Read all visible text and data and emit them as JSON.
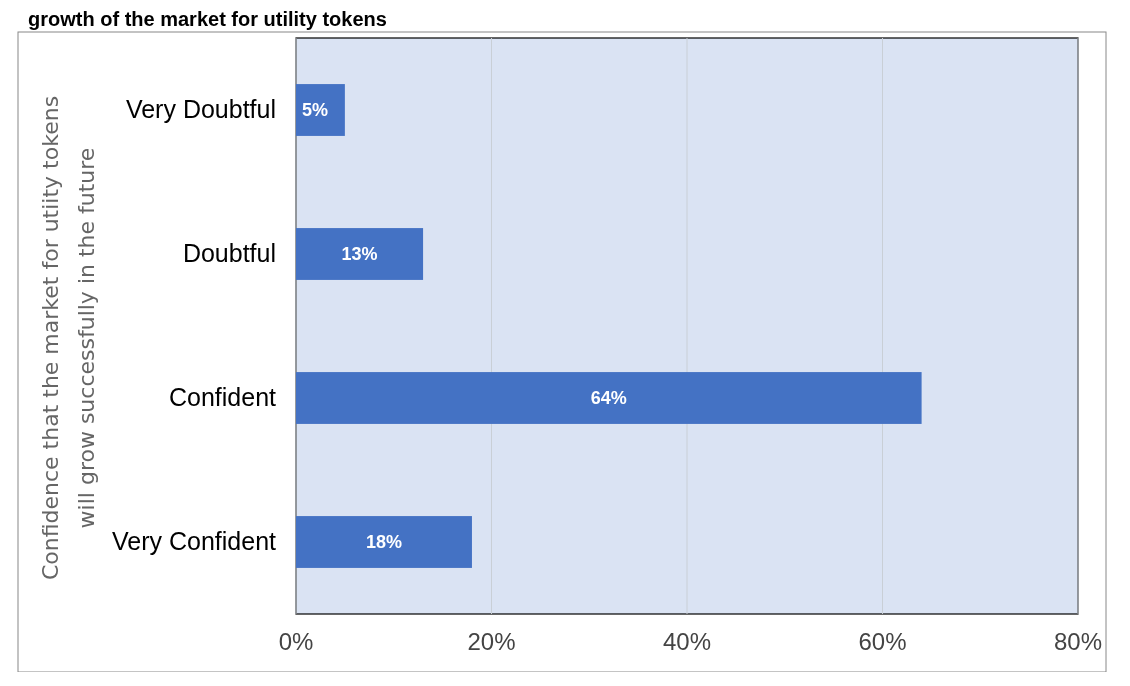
{
  "chart_data": {
    "type": "bar",
    "orientation": "horizontal",
    "title": "growth of the market for utility tokens",
    "ylabel": "Confidence that the market for utiity tokens\nwill grow successfully in the future",
    "categories": [
      "Very Doubtful",
      "Doubtful",
      "Confident",
      "Very Confident"
    ],
    "values": [
      5,
      13,
      64,
      18
    ],
    "value_labels": [
      "5%",
      "13%",
      "64%",
      "18%"
    ],
    "color": "#4472c4",
    "xlim": [
      0,
      80
    ],
    "xticks": [
      {
        "value": 0,
        "label": "0%"
      },
      {
        "value": 20,
        "label": "20%"
      },
      {
        "value": 40,
        "label": "40%"
      },
      {
        "value": 60,
        "label": "60%"
      },
      {
        "value": 80,
        "label": "80%"
      }
    ],
    "grid": "x"
  }
}
